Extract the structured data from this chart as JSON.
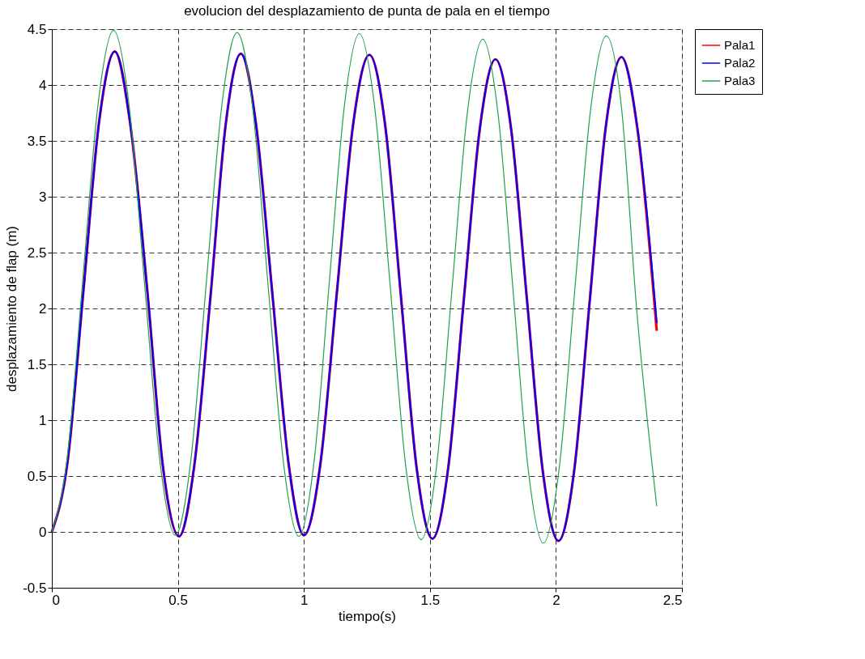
{
  "chart_data": {
    "type": "line",
    "title": "evolucion del desplazamiento de punta de pala en el tiempo",
    "xlabel": "tiempo(s)",
    "ylabel": "desplazamiento de flap (m)",
    "xlim": [
      0,
      2.5
    ],
    "xticks": [
      0,
      0.5,
      1,
      1.5,
      2,
      2.5
    ],
    "ylim": [
      -0.5,
      4.5
    ],
    "yticks": [
      -0.5,
      0,
      0.5,
      1,
      1.5,
      2,
      2.5,
      3,
      3.5,
      4,
      4.5
    ],
    "grid": true,
    "legend": "right",
    "line_style": "solid",
    "marker": "none",
    "series": [
      {
        "name": "Pala1",
        "color": "#ff0000",
        "x": [
          0,
          0.0625,
          0.125,
          0.1875,
          0.25,
          0.31,
          0.38,
          0.44,
          0.505,
          0.565,
          0.63,
          0.69,
          0.75,
          0.81,
          0.875,
          0.94,
          1.0,
          1.065,
          1.13,
          1.195,
          1.26,
          1.3225,
          1.385,
          1.4475,
          1.51,
          1.5725,
          1.635,
          1.6975,
          1.76,
          1.8225,
          1.885,
          1.9475,
          2.01,
          2.0725,
          2.135,
          2.1975,
          2.26,
          2.3225,
          2.4
        ],
        "values": [
          0,
          0.63,
          2.15,
          3.67,
          4.3,
          3.67,
          2.13,
          0.6,
          -0.04,
          0.59,
          2.12,
          3.65,
          4.28,
          3.65,
          2.13,
          0.6,
          -0.03,
          0.6,
          2.12,
          3.64,
          4.27,
          3.64,
          2.11,
          0.57,
          -0.06,
          0.57,
          2.09,
          3.6,
          4.23,
          3.6,
          2.08,
          0.55,
          -0.08,
          0.55,
          2.09,
          3.62,
          4.25,
          3.62,
          1.8
        ]
      },
      {
        "name": "Pala2",
        "color": "#0000ff",
        "x": [
          0,
          0.0625,
          0.125,
          0.1875,
          0.25,
          0.31,
          0.38,
          0.44,
          0.505,
          0.565,
          0.63,
          0.69,
          0.75,
          0.81,
          0.875,
          0.94,
          1.0,
          1.065,
          1.13,
          1.195,
          1.26,
          1.3225,
          1.385,
          1.4475,
          1.51,
          1.5725,
          1.635,
          1.6975,
          1.76,
          1.8225,
          1.885,
          1.9475,
          2.01,
          2.0725,
          2.135,
          2.1975,
          2.26,
          2.3225,
          2.4
        ],
        "values": [
          0,
          0.63,
          2.15,
          3.67,
          4.3,
          3.67,
          2.13,
          0.6,
          -0.04,
          0.59,
          2.12,
          3.65,
          4.28,
          3.65,
          2.13,
          0.6,
          -0.03,
          0.6,
          2.12,
          3.64,
          4.27,
          3.64,
          2.11,
          0.57,
          -0.06,
          0.57,
          2.09,
          3.6,
          4.23,
          3.6,
          2.08,
          0.55,
          -0.08,
          0.55,
          2.09,
          3.62,
          4.25,
          3.63,
          1.87
        ]
      },
      {
        "name": "Pala3",
        "color": "#1fa050",
        "x": [
          0,
          0.061,
          0.1225,
          0.184,
          0.245,
          0.306,
          0.3675,
          0.429,
          0.49,
          0.551,
          0.6125,
          0.674,
          0.735,
          0.796,
          0.8575,
          0.919,
          0.98,
          1.04,
          1.1,
          1.16,
          1.22,
          1.281,
          1.3425,
          1.404,
          1.465,
          1.526,
          1.5875,
          1.649,
          1.71,
          1.77,
          1.83,
          1.89,
          1.95,
          2.0125,
          2.075,
          2.1375,
          2.2,
          2.26,
          2.32,
          2.4
        ],
        "values": [
          0,
          0.66,
          2.25,
          3.84,
          4.49,
          3.83,
          2.23,
          0.63,
          -0.03,
          0.63,
          2.22,
          3.81,
          4.47,
          3.81,
          2.22,
          0.62,
          -0.04,
          0.62,
          2.21,
          3.8,
          4.46,
          3.8,
          2.2,
          0.59,
          -0.07,
          0.58,
          2.17,
          3.76,
          4.41,
          3.75,
          2.16,
          0.56,
          -0.1,
          0.56,
          2.17,
          3.78,
          4.44,
          3.8,
          2.0,
          0.23
        ]
      }
    ]
  }
}
